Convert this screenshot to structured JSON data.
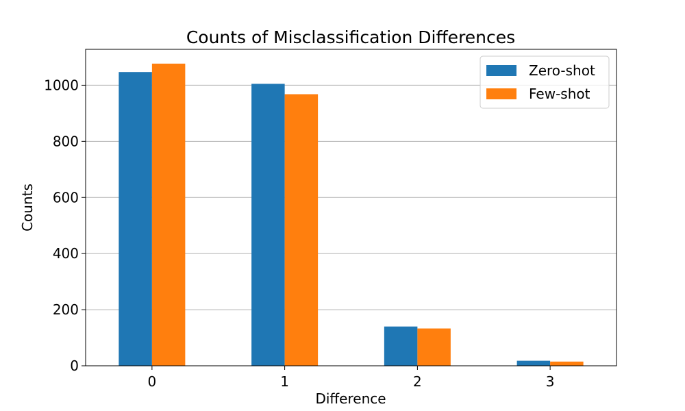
{
  "chart_data": {
    "type": "bar",
    "title": "Counts of Misclassification Differences",
    "xlabel": "Difference",
    "ylabel": "Counts",
    "categories": [
      "0",
      "1",
      "2",
      "3"
    ],
    "series": [
      {
        "name": "Zero-shot",
        "values": [
          1047,
          1005,
          140,
          18
        ],
        "color": "#1f77b4"
      },
      {
        "name": "Few-shot",
        "values": [
          1077,
          968,
          133,
          15
        ],
        "color": "#ff7f0e"
      }
    ],
    "ylim": [
      0,
      1128
    ],
    "yticks": [
      "0",
      "200",
      "400",
      "600",
      "800",
      "1000"
    ],
    "grid": "horizontal",
    "legend": "upper right"
  }
}
